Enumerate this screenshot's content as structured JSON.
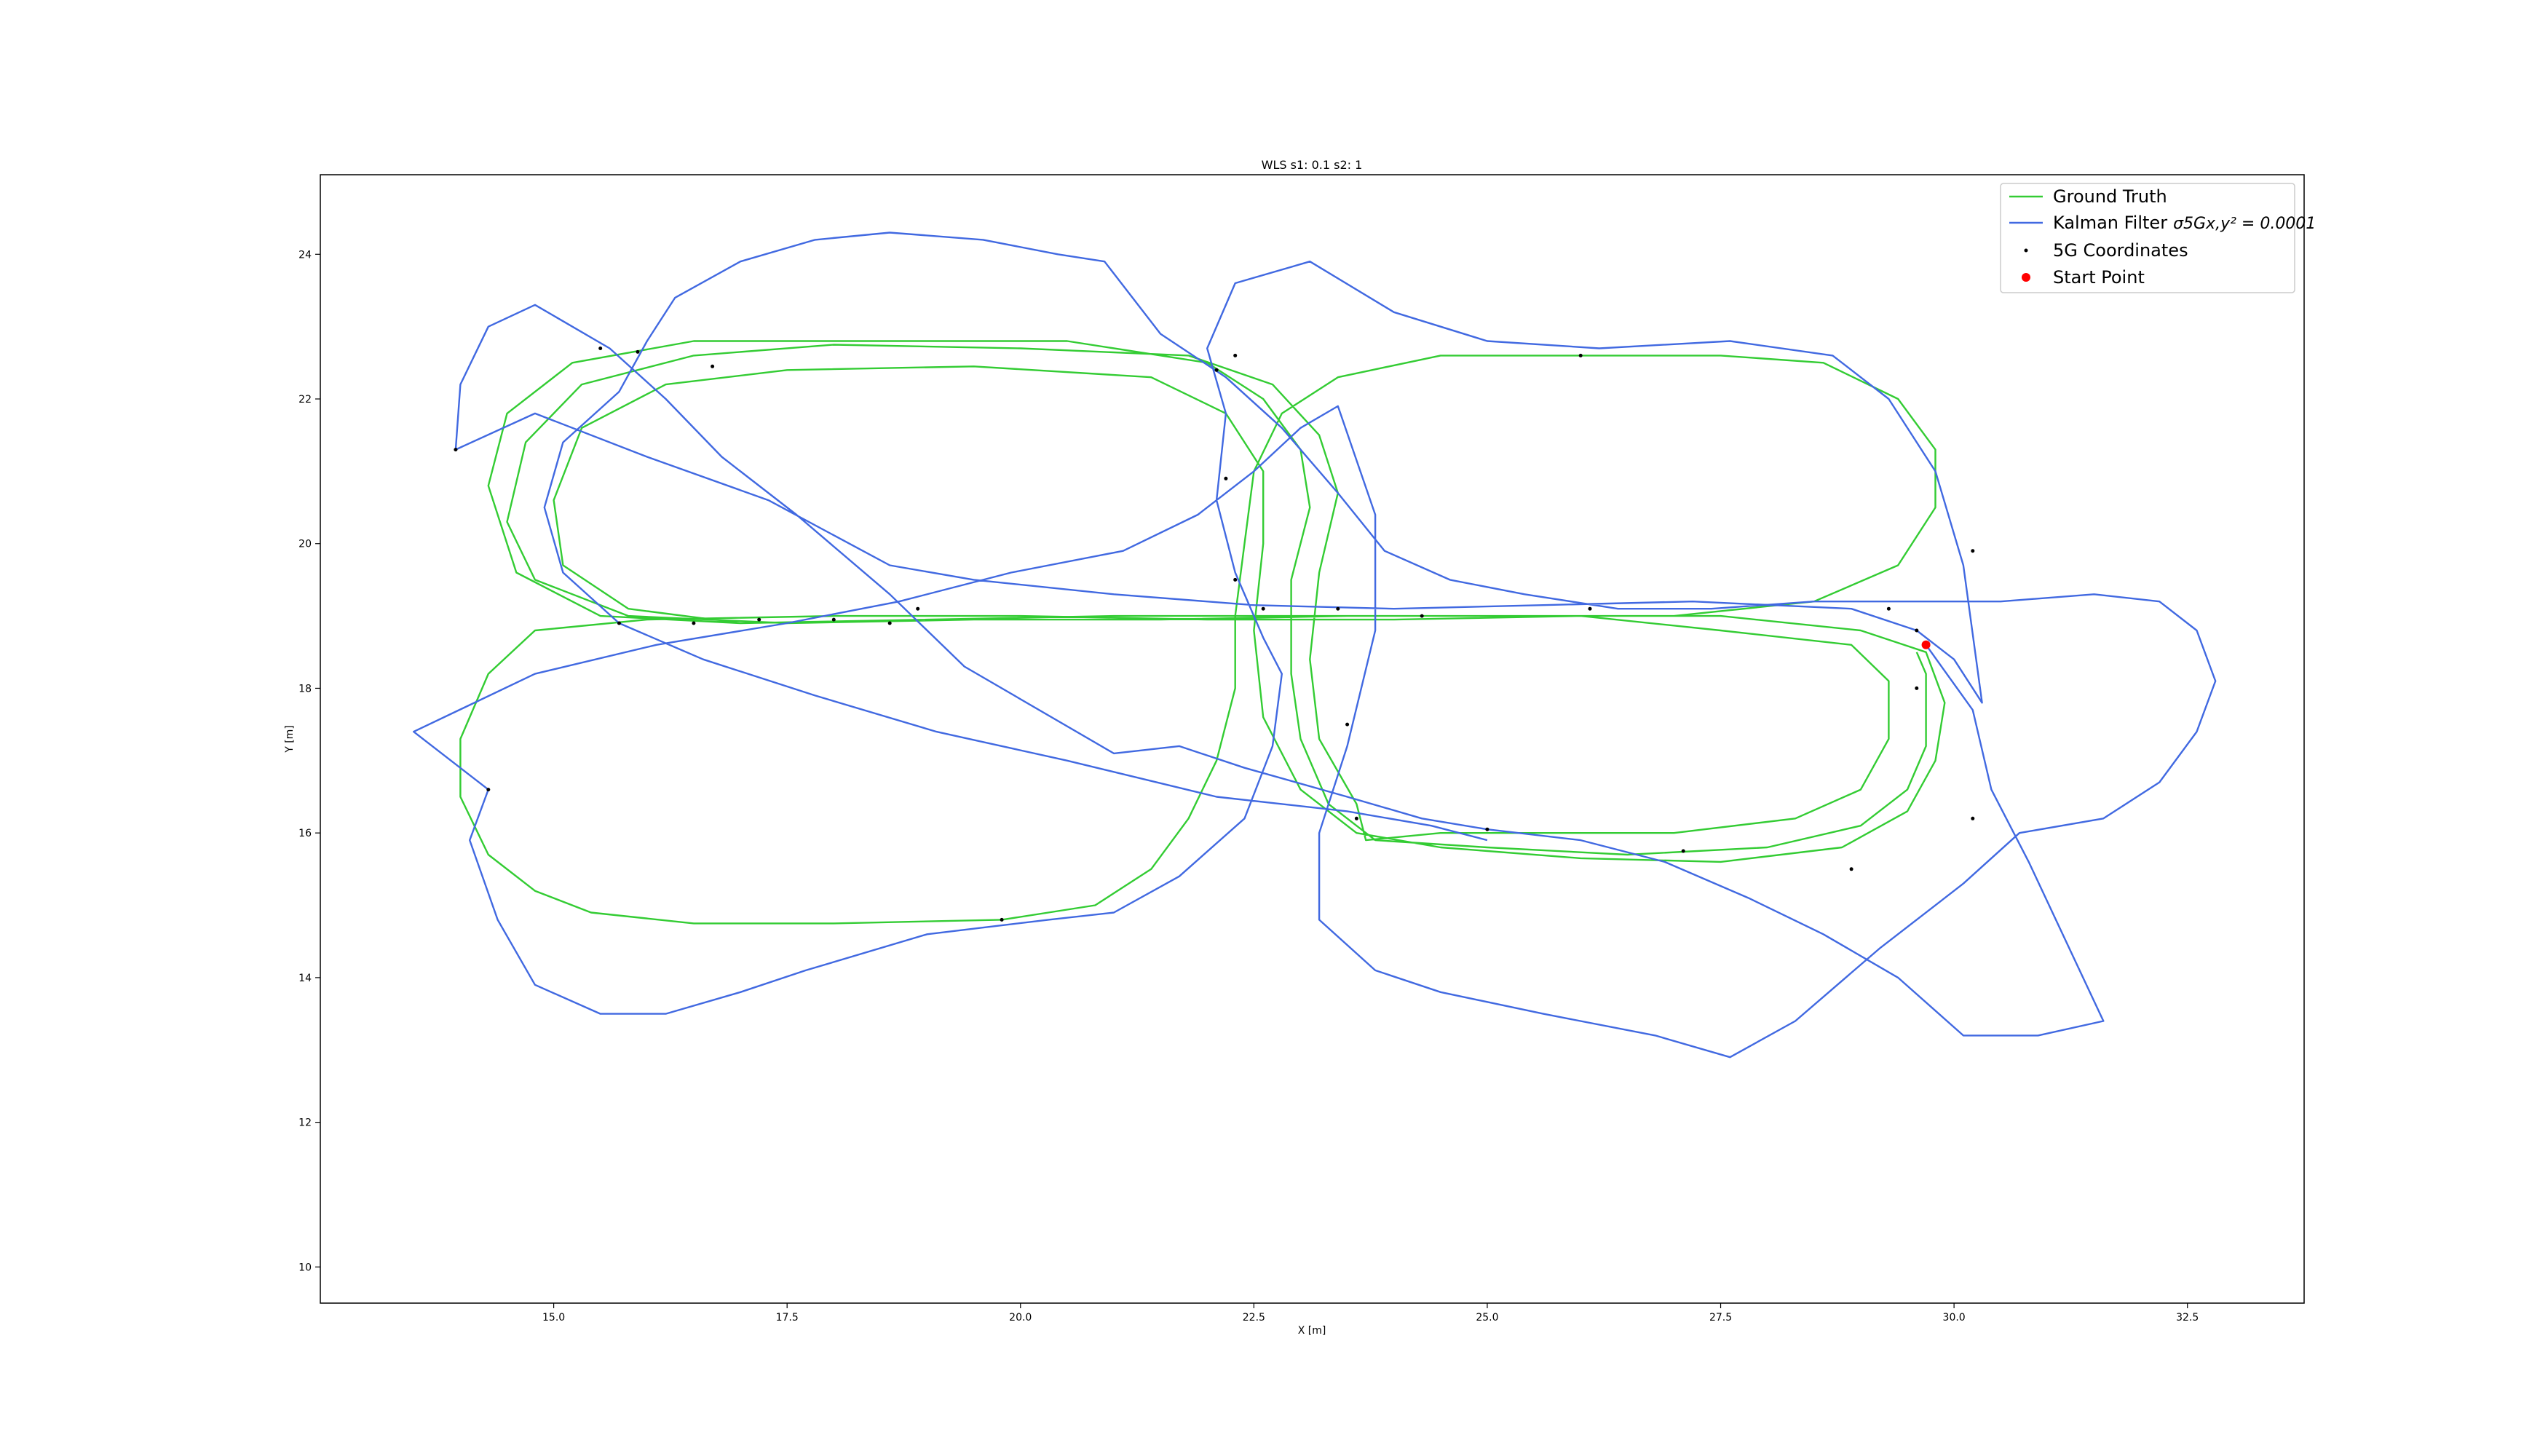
{
  "chart_data": {
    "type": "line",
    "title": "WLS s1: 0.1 s2: 1",
    "xlabel": "X [m]",
    "ylabel": "Y [m]",
    "xlim": [
      12.5,
      33.75
    ],
    "ylim": [
      9.5,
      25.1
    ],
    "xticks": [
      15.0,
      17.5,
      20.0,
      22.5,
      25.0,
      27.5,
      30.0,
      32.5
    ],
    "xtick_labels": [
      "15.0",
      "17.5",
      "20.0",
      "22.5",
      "25.0",
      "27.5",
      "30.0",
      "32.5"
    ],
    "yticks": [
      10,
      12,
      14,
      16,
      18,
      20,
      22,
      24
    ],
    "ytick_labels": [
      "10",
      "12",
      "14",
      "16",
      "18",
      "20",
      "22",
      "24"
    ],
    "grid": false,
    "legend_position": "top-right",
    "colors": {
      "ground_truth": "#33cc33",
      "kalman": "#4169e1",
      "points_5g": "#000000",
      "start": "#ff0000"
    },
    "legend": [
      {
        "label": "Ground Truth",
        "kind": "line",
        "color": "#33cc33"
      },
      {
        "label": "Kalman Filter",
        "math": "σ5Gx,y² = 0.0001",
        "kind": "line",
        "color": "#4169e1"
      },
      {
        "label": "5G Coordinates",
        "kind": "dot",
        "color": "#000000"
      },
      {
        "label": "Start Point",
        "kind": "dot-big",
        "color": "#ff0000"
      }
    ],
    "series": [
      {
        "name": "Ground Truth",
        "points": [
          [
            29.6,
            18.5
          ],
          [
            29.7,
            18.2
          ],
          [
            29.7,
            17.2
          ],
          [
            29.5,
            16.6
          ],
          [
            29.0,
            16.1
          ],
          [
            28.0,
            15.8
          ],
          [
            26.5,
            15.7
          ],
          [
            25.0,
            15.8
          ],
          [
            23.8,
            15.9
          ],
          [
            23.3,
            16.4
          ],
          [
            23.0,
            17.3
          ],
          [
            22.9,
            18.2
          ],
          [
            22.9,
            19.5
          ],
          [
            23.1,
            20.5
          ],
          [
            23.0,
            21.3
          ],
          [
            22.6,
            22.0
          ],
          [
            22.0,
            22.5
          ],
          [
            20.5,
            22.8
          ],
          [
            18.5,
            22.8
          ],
          [
            16.5,
            22.8
          ],
          [
            15.2,
            22.5
          ],
          [
            14.5,
            21.8
          ],
          [
            14.3,
            20.8
          ],
          [
            14.6,
            19.6
          ],
          [
            15.5,
            19.0
          ],
          [
            17.0,
            18.9
          ],
          [
            19.0,
            18.95
          ],
          [
            21.0,
            19.0
          ],
          [
            23.0,
            19.0
          ],
          [
            25.0,
            19.0
          ],
          [
            27.0,
            19.0
          ],
          [
            28.5,
            19.2
          ],
          [
            29.4,
            19.7
          ],
          [
            29.8,
            20.5
          ],
          [
            29.8,
            21.3
          ],
          [
            29.4,
            22.0
          ],
          [
            28.6,
            22.5
          ],
          [
            27.5,
            22.6
          ],
          [
            26.0,
            22.6
          ],
          [
            24.5,
            22.6
          ],
          [
            23.4,
            22.3
          ],
          [
            22.8,
            21.8
          ],
          [
            22.5,
            21.0
          ],
          [
            22.4,
            20.0
          ],
          [
            22.3,
            19.0
          ],
          [
            22.3,
            18.0
          ],
          [
            22.1,
            17.0
          ],
          [
            21.8,
            16.2
          ],
          [
            21.4,
            15.5
          ],
          [
            20.8,
            15.0
          ],
          [
            19.8,
            14.8
          ],
          [
            18.0,
            14.75
          ],
          [
            16.5,
            14.75
          ],
          [
            15.4,
            14.9
          ],
          [
            14.8,
            15.2
          ],
          [
            14.3,
            15.7
          ],
          [
            14.0,
            16.5
          ],
          [
            14.0,
            17.3
          ],
          [
            14.3,
            18.2
          ],
          [
            14.8,
            18.8
          ],
          [
            16.0,
            18.95
          ],
          [
            18.0,
            19.0
          ],
          [
            20.0,
            19.0
          ],
          [
            22.0,
            18.95
          ],
          [
            24.0,
            18.95
          ],
          [
            26.0,
            19.0
          ],
          [
            27.5,
            18.8
          ],
          [
            28.9,
            18.6
          ],
          [
            29.3,
            18.1
          ],
          [
            29.3,
            17.3
          ],
          [
            29.0,
            16.6
          ],
          [
            28.3,
            16.2
          ],
          [
            27.0,
            16.0
          ],
          [
            25.5,
            16.0
          ],
          [
            24.5,
            16.0
          ],
          [
            23.7,
            15.9
          ],
          [
            23.6,
            16.4
          ],
          [
            23.2,
            17.3
          ],
          [
            23.1,
            18.4
          ],
          [
            23.2,
            19.6
          ],
          [
            23.4,
            20.7
          ],
          [
            23.2,
            21.5
          ],
          [
            22.7,
            22.2
          ],
          [
            21.8,
            22.6
          ],
          [
            20.0,
            22.7
          ],
          [
            18.0,
            22.75
          ],
          [
            16.5,
            22.6
          ],
          [
            15.3,
            22.2
          ],
          [
            14.7,
            21.4
          ],
          [
            14.5,
            20.3
          ],
          [
            14.8,
            19.5
          ],
          [
            15.8,
            19.0
          ],
          [
            17.5,
            18.9
          ],
          [
            19.5,
            18.95
          ],
          [
            21.5,
            18.95
          ],
          [
            23.5,
            19.0
          ],
          [
            25.5,
            19.0
          ],
          [
            27.5,
            19.0
          ],
          [
            29.0,
            18.8
          ],
          [
            29.7,
            18.5
          ],
          [
            29.9,
            17.8
          ],
          [
            29.8,
            17.0
          ],
          [
            29.5,
            16.3
          ],
          [
            28.8,
            15.8
          ],
          [
            27.5,
            15.6
          ],
          [
            26.0,
            15.65
          ],
          [
            24.5,
            15.8
          ],
          [
            23.6,
            16.0
          ],
          [
            23.0,
            16.6
          ],
          [
            22.6,
            17.6
          ],
          [
            22.5,
            18.8
          ],
          [
            22.6,
            20.0
          ],
          [
            22.6,
            21.0
          ],
          [
            22.2,
            21.8
          ],
          [
            21.4,
            22.3
          ],
          [
            19.5,
            22.45
          ],
          [
            17.5,
            22.4
          ],
          [
            16.2,
            22.2
          ],
          [
            15.3,
            21.6
          ],
          [
            15.0,
            20.6
          ],
          [
            15.1,
            19.7
          ],
          [
            15.8,
            19.1
          ],
          [
            17.0,
            18.9
          ]
        ]
      },
      {
        "name": "Kalman Filter",
        "points": [
          [
            29.7,
            18.6
          ],
          [
            30.2,
            17.7
          ],
          [
            30.4,
            16.6
          ],
          [
            30.8,
            15.6
          ],
          [
            31.6,
            13.4
          ],
          [
            30.9,
            13.2
          ],
          [
            30.1,
            13.2
          ],
          [
            29.4,
            14.0
          ],
          [
            28.6,
            14.6
          ],
          [
            27.8,
            15.1
          ],
          [
            26.9,
            15.6
          ],
          [
            26.0,
            15.9
          ],
          [
            25.0,
            16.05
          ],
          [
            24.3,
            16.2
          ],
          [
            23.5,
            16.5
          ],
          [
            22.4,
            16.9
          ],
          [
            21.7,
            17.2
          ],
          [
            21.0,
            17.1
          ],
          [
            19.4,
            18.3
          ],
          [
            18.6,
            19.3
          ],
          [
            17.6,
            20.4
          ],
          [
            16.8,
            21.2
          ],
          [
            16.2,
            22.0
          ],
          [
            15.6,
            22.7
          ],
          [
            14.8,
            23.3
          ],
          [
            14.3,
            23.0
          ],
          [
            14.0,
            22.2
          ],
          [
            13.95,
            21.3
          ],
          [
            14.8,
            21.8
          ],
          [
            16.0,
            21.2
          ],
          [
            17.3,
            20.6
          ],
          [
            18.6,
            19.7
          ],
          [
            19.5,
            19.5
          ],
          [
            21.0,
            19.3
          ],
          [
            22.5,
            19.15
          ],
          [
            24.0,
            19.1
          ],
          [
            25.6,
            19.15
          ],
          [
            27.2,
            19.2
          ],
          [
            28.9,
            19.1
          ],
          [
            29.6,
            18.8
          ],
          [
            30.0,
            18.4
          ],
          [
            30.3,
            17.8
          ],
          [
            30.1,
            19.7
          ],
          [
            29.8,
            21.0
          ],
          [
            29.3,
            22.0
          ],
          [
            28.7,
            22.6
          ],
          [
            27.6,
            22.8
          ],
          [
            26.2,
            22.7
          ],
          [
            25.0,
            22.8
          ],
          [
            24.0,
            23.2
          ],
          [
            23.1,
            23.9
          ],
          [
            22.3,
            23.6
          ],
          [
            22.0,
            22.7
          ],
          [
            22.2,
            21.8
          ],
          [
            22.1,
            20.6
          ],
          [
            22.3,
            19.6
          ],
          [
            22.6,
            18.7
          ],
          [
            22.8,
            18.2
          ],
          [
            22.7,
            17.2
          ],
          [
            22.4,
            16.2
          ],
          [
            21.7,
            15.4
          ],
          [
            21.0,
            14.9
          ],
          [
            20.3,
            14.8
          ],
          [
            19.0,
            14.6
          ],
          [
            17.7,
            14.1
          ],
          [
            17.0,
            13.8
          ],
          [
            16.2,
            13.5
          ],
          [
            15.5,
            13.5
          ],
          [
            14.8,
            13.9
          ],
          [
            14.4,
            14.8
          ],
          [
            14.1,
            15.9
          ],
          [
            14.3,
            16.6
          ],
          [
            13.5,
            17.4
          ],
          [
            14.8,
            18.2
          ],
          [
            16.1,
            18.6
          ],
          [
            17.5,
            18.9
          ],
          [
            18.7,
            19.2
          ],
          [
            19.9,
            19.6
          ],
          [
            21.1,
            19.9
          ],
          [
            21.9,
            20.4
          ],
          [
            22.5,
            21.0
          ],
          [
            23.0,
            21.6
          ],
          [
            23.4,
            21.9
          ],
          [
            23.8,
            20.4
          ],
          [
            23.8,
            18.8
          ],
          [
            23.5,
            17.2
          ],
          [
            23.2,
            16.0
          ],
          [
            23.2,
            14.8
          ],
          [
            23.8,
            14.1
          ],
          [
            24.5,
            13.8
          ],
          [
            25.6,
            13.5
          ],
          [
            26.8,
            13.2
          ],
          [
            27.6,
            12.9
          ],
          [
            28.3,
            13.4
          ],
          [
            29.2,
            14.4
          ],
          [
            30.1,
            15.3
          ],
          [
            30.7,
            16.0
          ],
          [
            31.6,
            16.2
          ],
          [
            32.2,
            16.7
          ],
          [
            32.6,
            17.4
          ],
          [
            32.8,
            18.1
          ],
          [
            32.6,
            18.8
          ],
          [
            32.2,
            19.2
          ],
          [
            31.5,
            19.3
          ],
          [
            30.5,
            19.2
          ],
          [
            29.5,
            19.2
          ],
          [
            28.5,
            19.2
          ],
          [
            27.4,
            19.1
          ],
          [
            26.4,
            19.1
          ],
          [
            25.4,
            19.3
          ],
          [
            24.6,
            19.5
          ],
          [
            23.9,
            19.9
          ],
          [
            23.4,
            20.7
          ],
          [
            22.8,
            21.6
          ],
          [
            22.2,
            22.3
          ],
          [
            21.5,
            22.9
          ],
          [
            20.9,
            23.9
          ],
          [
            20.4,
            24.0
          ],
          [
            19.6,
            24.2
          ],
          [
            18.6,
            24.3
          ],
          [
            17.8,
            24.2
          ],
          [
            17.0,
            23.9
          ],
          [
            16.3,
            23.4
          ],
          [
            16.0,
            22.8
          ],
          [
            15.7,
            22.1
          ],
          [
            15.1,
            21.4
          ],
          [
            14.9,
            20.5
          ],
          [
            15.1,
            19.6
          ],
          [
            15.7,
            18.9
          ],
          [
            16.6,
            18.4
          ],
          [
            17.8,
            17.9
          ],
          [
            19.1,
            17.4
          ],
          [
            20.5,
            17.0
          ],
          [
            22.1,
            16.5
          ],
          [
            23.5,
            16.3
          ],
          [
            24.4,
            16.1
          ],
          [
            25.0,
            15.9
          ]
        ]
      }
    ],
    "scatter_5g": [
      [
        15.5,
        22.7
      ],
      [
        15.9,
        22.65
      ],
      [
        16.7,
        22.45
      ],
      [
        13.95,
        21.3
      ],
      [
        15.7,
        18.9
      ],
      [
        16.5,
        18.9
      ],
      [
        17.2,
        18.95
      ],
      [
        18.0,
        18.95
      ],
      [
        18.9,
        19.1
      ],
      [
        18.6,
        18.9
      ],
      [
        19.8,
        14.8
      ],
      [
        22.3,
        22.6
      ],
      [
        22.1,
        22.4
      ],
      [
        22.2,
        20.9
      ],
      [
        22.3,
        19.5
      ],
      [
        22.6,
        19.1
      ],
      [
        23.4,
        19.1
      ],
      [
        24.3,
        19.0
      ],
      [
        26.0,
        22.6
      ],
      [
        26.1,
        19.1
      ],
      [
        23.5,
        17.5
      ],
      [
        23.6,
        16.2
      ],
      [
        25.0,
        16.05
      ],
      [
        27.1,
        15.75
      ],
      [
        28.9,
        15.5
      ],
      [
        29.3,
        19.1
      ],
      [
        29.6,
        18.8
      ],
      [
        29.6,
        18.0
      ],
      [
        30.2,
        19.9
      ],
      [
        30.2,
        16.2
      ],
      [
        14.3,
        16.6
      ]
    ],
    "start_point": [
      29.7,
      18.6
    ]
  }
}
